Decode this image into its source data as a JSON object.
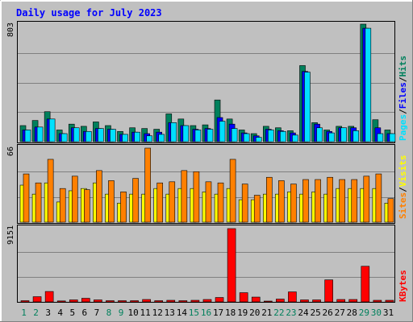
{
  "title": "Daily usage for July 2023",
  "colors": {
    "hits": "#00805c",
    "files": "#0000ff",
    "pages": "#00e0ff",
    "visits": "#ffff00",
    "sites": "#ff8000",
    "kbytes": "#ff0000",
    "panel": "#c0c0c0",
    "title_text": "#0000ff",
    "weekend_label": "#00805c",
    "weekday_label": "#000000"
  },
  "labels": {
    "hits": "Hits",
    "files": "Files",
    "pages": "Pages",
    "visits": "Visits",
    "sites": "Sites",
    "kbytes": "KBytes",
    "sep": "/"
  },
  "chart_data": [
    {
      "type": "bar",
      "panel": "hits-files-pages",
      "ymax_label": "803",
      "ylim": [
        0,
        803
      ],
      "categories": [
        "1",
        "2",
        "3",
        "4",
        "5",
        "6",
        "7",
        "8",
        "9",
        "10",
        "11",
        "12",
        "13",
        "14",
        "15",
        "16",
        "17",
        "18",
        "19",
        "20",
        "21",
        "22",
        "23",
        "24",
        "25",
        "26",
        "27",
        "28",
        "29",
        "30",
        "31"
      ],
      "weekend_days": [
        "1",
        "2",
        "8",
        "9",
        "15",
        "16",
        "22",
        "23",
        "29",
        "30"
      ],
      "series": [
        {
          "name": "Hits",
          "values": [
            110,
            145,
            205,
            80,
            120,
            105,
            135,
            110,
            70,
            95,
            90,
            85,
            190,
            155,
            110,
            115,
            285,
            155,
            80,
            55,
            105,
            95,
            75,
            520,
            130,
            80,
            105,
            105,
            803,
            150,
            80
          ]
        },
        {
          "name": "Files",
          "values": [
            80,
            100,
            155,
            55,
            95,
            70,
            90,
            85,
            50,
            65,
            55,
            65,
            130,
            110,
            85,
            90,
            165,
            120,
            60,
            40,
            85,
            75,
            60,
            480,
            120,
            70,
            95,
            95,
            775,
            95,
            55
          ]
        },
        {
          "name": "Pages",
          "values": [
            80,
            100,
            155,
            55,
            95,
            70,
            90,
            85,
            50,
            65,
            40,
            50,
            130,
            110,
            80,
            85,
            140,
            90,
            55,
            30,
            80,
            70,
            45,
            475,
            95,
            60,
            95,
            75,
            775,
            55,
            55
          ]
        }
      ]
    },
    {
      "type": "bar",
      "panel": "visits-sites",
      "ymax_label": "66",
      "ylim": [
        0,
        66
      ],
      "categories": [
        "1",
        "2",
        "3",
        "4",
        "5",
        "6",
        "7",
        "8",
        "9",
        "10",
        "11",
        "12",
        "13",
        "14",
        "15",
        "16",
        "17",
        "18",
        "19",
        "20",
        "21",
        "22",
        "23",
        "24",
        "25",
        "26",
        "27",
        "28",
        "29",
        "30",
        "31"
      ],
      "series": [
        {
          "name": "Visits",
          "values": [
            33,
            25,
            35,
            18,
            28,
            30,
            35,
            25,
            17,
            25,
            25,
            30,
            25,
            30,
            30,
            27,
            25,
            30,
            20,
            20,
            25,
            25,
            27,
            25,
            27,
            25,
            30,
            30,
            30,
            30,
            17
          ]
        },
        {
          "name": "Sites",
          "values": [
            43,
            35,
            56,
            30,
            41,
            29,
            46,
            37,
            27,
            39,
            66,
            35,
            36,
            46,
            45,
            36,
            35,
            56,
            34,
            24,
            40,
            37,
            34,
            38,
            38,
            40,
            38,
            38,
            41,
            43,
            21
          ]
        }
      ]
    },
    {
      "type": "bar",
      "panel": "kbytes",
      "ymax_label": "9151",
      "ylim": [
        0,
        9151
      ],
      "categories": [
        "1",
        "2",
        "3",
        "4",
        "5",
        "6",
        "7",
        "8",
        "9",
        "10",
        "11",
        "12",
        "13",
        "14",
        "15",
        "16",
        "17",
        "18",
        "19",
        "20",
        "21",
        "22",
        "23",
        "24",
        "25",
        "26",
        "27",
        "28",
        "29",
        "30",
        "31"
      ],
      "series": [
        {
          "name": "KBytes",
          "values": [
            150,
            650,
            1300,
            120,
            250,
            450,
            250,
            150,
            150,
            150,
            300,
            150,
            200,
            150,
            200,
            300,
            550,
            9151,
            1150,
            600,
            100,
            350,
            1250,
            250,
            250,
            2750,
            300,
            300,
            4450,
            200,
            200
          ]
        }
      ]
    }
  ]
}
